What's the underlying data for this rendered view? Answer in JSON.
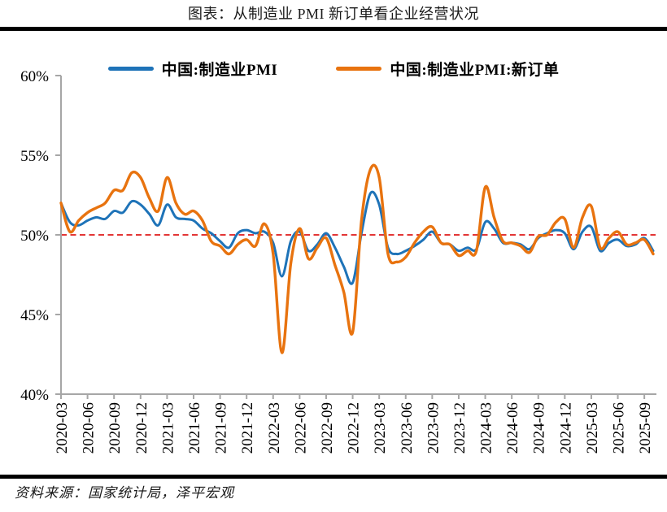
{
  "footer": {
    "source": "资料来源：国家统计局，泽平宏观"
  },
  "chart_data": {
    "type": "line",
    "title": "图表：从制造业 PMI 新订单看企业经营状况",
    "legend_position": "top",
    "grid": false,
    "ylim": [
      40,
      60
    ],
    "y_tick_values": [
      60,
      55,
      50,
      45,
      40
    ],
    "y_tick_labels": [
      "60%",
      "55%",
      "50%",
      "45%",
      "40%"
    ],
    "axis_color": "#A6A6A6",
    "ref_line": {
      "value": 50,
      "color": "#DF1A1A",
      "style": "dashed"
    },
    "x": [
      "2020-03",
      "2020-04",
      "2020-05",
      "2020-06",
      "2020-07",
      "2020-08",
      "2020-09",
      "2020-10",
      "2020-11",
      "2020-12",
      "2021-01",
      "2021-02",
      "2021-03",
      "2021-04",
      "2021-05",
      "2021-06",
      "2021-07",
      "2021-08",
      "2021-09",
      "2021-10",
      "2021-11",
      "2021-12",
      "2022-01",
      "2022-02",
      "2022-03",
      "2022-04",
      "2022-05",
      "2022-06",
      "2022-07",
      "2022-08",
      "2022-09",
      "2022-10",
      "2022-11",
      "2022-12",
      "2023-01",
      "2023-02",
      "2023-03",
      "2023-04",
      "2023-05",
      "2023-06",
      "2023-07",
      "2023-08",
      "2023-09",
      "2023-10",
      "2023-11",
      "2023-12",
      "2024-01",
      "2024-02",
      "2024-03",
      "2024-04",
      "2024-05",
      "2024-06",
      "2024-07",
      "2024-08",
      "2024-09",
      "2024-10",
      "2024-11",
      "2024-12",
      "2025-01",
      "2025-02",
      "2025-03",
      "2025-04",
      "2025-05",
      "2025-06",
      "2025-07",
      "2025-08",
      "2025-09",
      "2025-10"
    ],
    "x_tick_labels": [
      "2020-03",
      "2020-06",
      "2020-09",
      "2020-12",
      "2021-03",
      "2021-06",
      "2021-09",
      "2021-12",
      "2022-03",
      "2022-06",
      "2022-09",
      "2022-12",
      "2023-03",
      "2023-06",
      "2023-09",
      "2023-12",
      "2024-03",
      "2024-06",
      "2024-09",
      "2024-12",
      "2025-03",
      "2025-06",
      "2025-09"
    ],
    "series": [
      {
        "name": "中国:制造业PMI",
        "color": "#1E73B8",
        "values": [
          52.0,
          50.8,
          50.6,
          50.9,
          51.1,
          51.0,
          51.5,
          51.4,
          52.1,
          51.9,
          51.3,
          50.6,
          51.9,
          51.1,
          51.0,
          50.9,
          50.4,
          50.1,
          49.6,
          49.2,
          50.1,
          50.3,
          50.1,
          50.2,
          49.5,
          47.4,
          49.6,
          50.2,
          49.0,
          49.4,
          50.1,
          49.2,
          48.0,
          47.0,
          50.1,
          52.6,
          51.9,
          49.2,
          48.8,
          49.0,
          49.3,
          49.7,
          50.2,
          49.5,
          49.4,
          49.0,
          49.2,
          49.1,
          50.8,
          50.4,
          49.5,
          49.5,
          49.4,
          49.1,
          49.8,
          50.1,
          50.3,
          50.1,
          49.1,
          50.2,
          50.5,
          49.0,
          49.5,
          49.7,
          49.3,
          49.4,
          49.8,
          49.0
        ]
      },
      {
        "name": "中国:制造业PMI:新订单",
        "color": "#E8730F",
        "values": [
          52.0,
          50.2,
          50.9,
          51.4,
          51.7,
          52.0,
          52.8,
          52.8,
          53.9,
          53.6,
          52.3,
          51.5,
          53.6,
          52.0,
          51.3,
          51.5,
          50.9,
          49.6,
          49.3,
          48.8,
          49.4,
          49.7,
          49.3,
          50.7,
          48.8,
          42.6,
          48.2,
          50.4,
          48.5,
          49.2,
          49.8,
          48.1,
          46.4,
          43.9,
          50.9,
          54.1,
          53.6,
          48.8,
          48.3,
          48.6,
          49.5,
          50.2,
          50.5,
          49.5,
          49.4,
          48.7,
          49.0,
          49.0,
          53.0,
          51.1,
          49.6,
          49.5,
          49.3,
          48.9,
          49.9,
          50.0,
          50.8,
          51.0,
          49.2,
          51.1,
          51.8,
          49.2,
          49.8,
          50.2,
          49.4,
          49.5,
          49.7,
          48.8
        ]
      }
    ]
  }
}
